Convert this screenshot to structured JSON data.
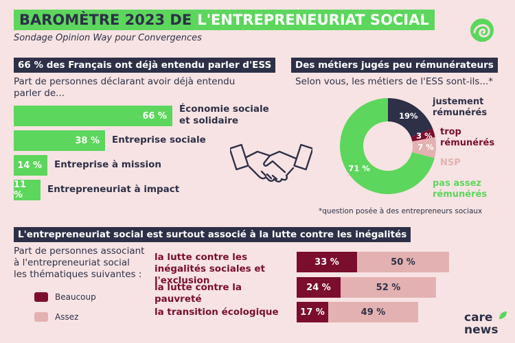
{
  "header": {
    "title_dark": "BAROMÈTRE 2023 DE",
    "title_light": "L'ENTREPRENEURIAT SOCIAL",
    "subtitle": "Sondage Opinion Way pour Convergences"
  },
  "section1": {
    "heading": "66 % des Français ont déjà entendu parler d'ESS",
    "description_line1": "Part de personnes déclarant avoir déjà entendu",
    "description_line2": "parler de..."
  },
  "section2": {
    "heading": "Des métiers jugés peu rémunérateurs",
    "question": "Selon vous, les métiers de l'ESS sont-ils...*",
    "footnote": "*question posée à des entrepreneurs sociaux"
  },
  "section3": {
    "heading": "L'entrepreneuriat social est surtout associé à la lutte contre les inégalités",
    "description_line1": "Part de personnes associant",
    "description_line2": "à l'entrepreneuriat social",
    "description_line3": "les thématiques suivantes :",
    "legend_beaucoup": "Beaucoup",
    "legend_assez": "Assez"
  },
  "brand": {
    "line1": "care",
    "line2": "news"
  },
  "colors": {
    "green": "#5cd65c",
    "navy": "#2d3047",
    "burgundy": "#7a0e2c",
    "rose": "#e3b1b1",
    "background": "#f7e3e3"
  },
  "chart_data": [
    {
      "type": "bar",
      "orientation": "horizontal",
      "categories": [
        "Économie sociale et solidaire",
        "Entreprise sociale",
        "Entreprise à mission",
        "Entrepreneuriat à impact"
      ],
      "values": [
        66,
        38,
        14,
        11
      ],
      "value_labels": [
        "66 %",
        "38 %",
        "14 %",
        "11 %"
      ],
      "xlim": [
        0,
        100
      ]
    },
    {
      "type": "pie",
      "donut": true,
      "categories": [
        "justement rémunérés",
        "trop rémunérés",
        "NSP",
        "pas assez rémunérés"
      ],
      "values": [
        19,
        3,
        7,
        71
      ],
      "value_labels": [
        "19%",
        "3 %",
        "7 %",
        "71 %"
      ],
      "colors": [
        "#2d3047",
        "#7a0e2c",
        "#e3b1b1",
        "#5cd65c"
      ]
    },
    {
      "type": "bar",
      "orientation": "horizontal",
      "stacked": true,
      "categories": [
        "la lutte contre les inégalités sociales et l'exclusion",
        "la lutte contre la pauvreté",
        "la transition écologique"
      ],
      "series": [
        {
          "name": "Beaucoup",
          "values": [
            33,
            24,
            17
          ],
          "labels": [
            "33 %",
            "24 %",
            "17 %"
          ]
        },
        {
          "name": "Assez",
          "values": [
            50,
            52,
            49
          ],
          "labels": [
            "50 %",
            "52 %",
            "49 %"
          ]
        }
      ]
    }
  ]
}
